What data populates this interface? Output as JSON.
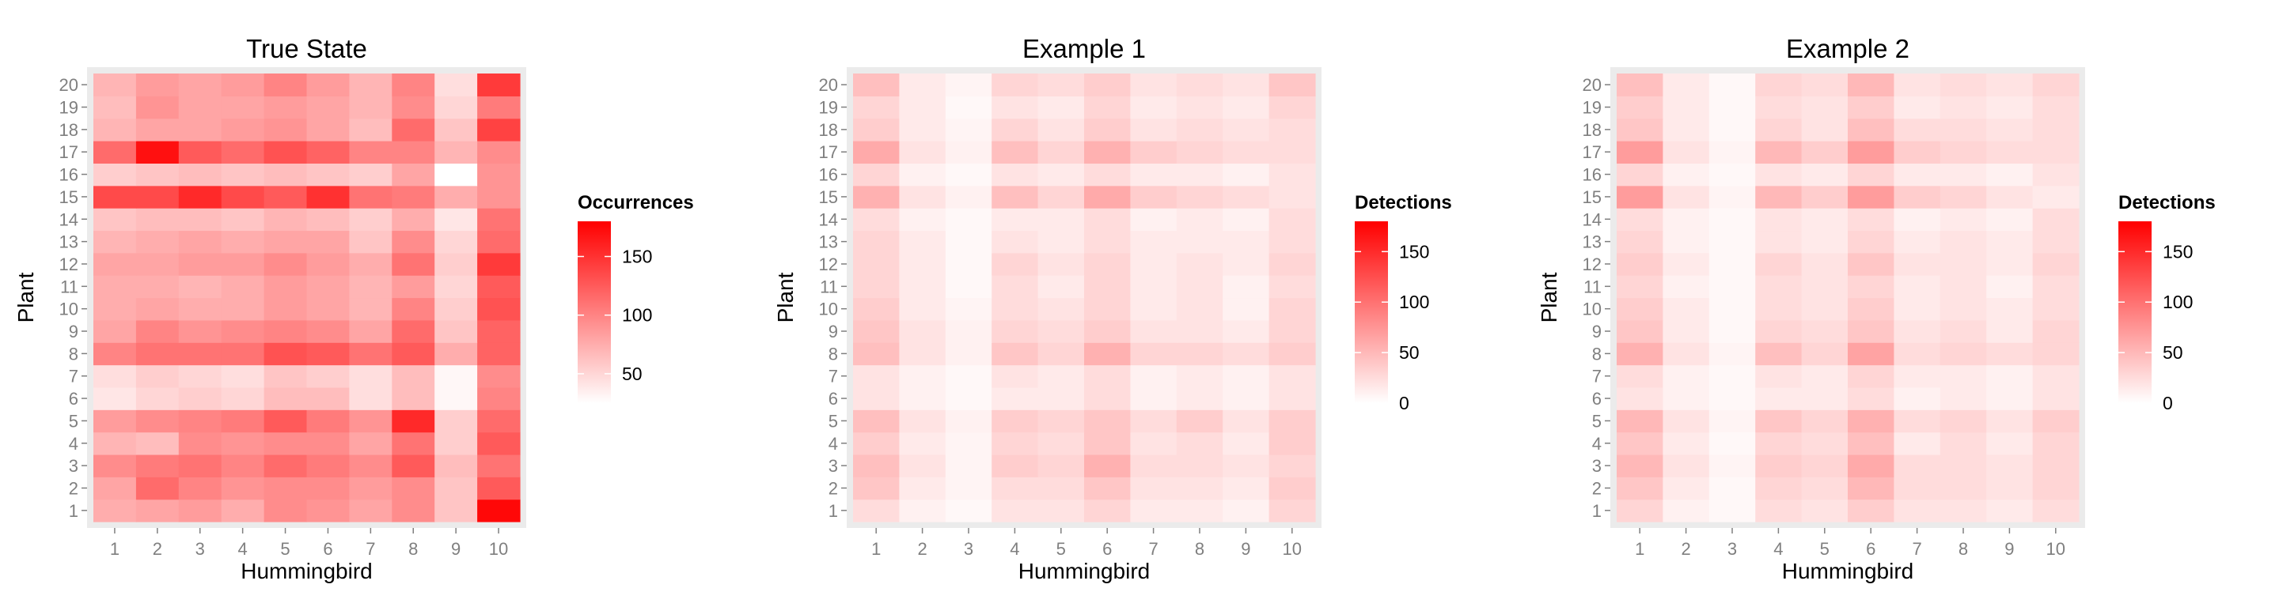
{
  "chart_data": [
    {
      "type": "heatmap",
      "title": "True State",
      "xlabel": "Hummingbird",
      "ylabel": "Plant",
      "x": [
        "1",
        "2",
        "3",
        "4",
        "5",
        "6",
        "7",
        "8",
        "9",
        "10"
      ],
      "y": [
        "1",
        "2",
        "3",
        "4",
        "5",
        "6",
        "7",
        "8",
        "9",
        "10",
        "11",
        "12",
        "13",
        "14",
        "15",
        "16",
        "17",
        "18",
        "19",
        "20"
      ],
      "legend": {
        "title": "Occurrences",
        "ticks": [
          50,
          100,
          150
        ],
        "min": 25,
        "max": 180
      },
      "values": [
        [
          75,
          80,
          85,
          75,
          95,
          90,
          80,
          95,
          60,
          175
        ],
        [
          80,
          115,
          100,
          90,
          95,
          95,
          85,
          95,
          60,
          125
        ],
        [
          95,
          105,
          110,
          100,
          115,
          105,
          95,
          125,
          65,
          110
        ],
        [
          70,
          65,
          95,
          90,
          95,
          95,
          80,
          110,
          55,
          125
        ],
        [
          85,
          95,
          100,
          105,
          125,
          105,
          90,
          155,
          55,
          115
        ],
        [
          40,
          50,
          55,
          50,
          65,
          65,
          45,
          65,
          30,
          100
        ],
        [
          45,
          55,
          50,
          45,
          60,
          55,
          45,
          65,
          30,
          95
        ],
        [
          100,
          110,
          110,
          110,
          130,
          125,
          110,
          125,
          75,
          120
        ],
        [
          80,
          100,
          90,
          95,
          100,
          95,
          80,
          115,
          60,
          120
        ],
        [
          75,
          80,
          75,
          75,
          85,
          80,
          70,
          100,
          55,
          130
        ],
        [
          75,
          75,
          70,
          75,
          85,
          80,
          70,
          85,
          50,
          125
        ],
        [
          80,
          80,
          85,
          85,
          95,
          85,
          75,
          110,
          55,
          145
        ],
        [
          70,
          75,
          80,
          75,
          80,
          80,
          60,
          95,
          50,
          115
        ],
        [
          60,
          65,
          65,
          60,
          70,
          65,
          55,
          75,
          40,
          110
        ],
        [
          135,
          135,
          155,
          135,
          125,
          150,
          110,
          105,
          75,
          90
        ],
        [
          55,
          60,
          65,
          60,
          65,
          60,
          55,
          80,
          25,
          90
        ],
        [
          115,
          170,
          125,
          115,
          130,
          120,
          100,
          100,
          70,
          95
        ],
        [
          70,
          80,
          80,
          85,
          90,
          80,
          65,
          115,
          60,
          140
        ],
        [
          65,
          90,
          80,
          80,
          85,
          80,
          70,
          95,
          50,
          105
        ],
        [
          70,
          85,
          80,
          85,
          100,
          85,
          70,
          100,
          45,
          145
        ]
      ]
    },
    {
      "type": "heatmap",
      "title": "Example 1",
      "xlabel": "Hummingbird",
      "ylabel": "Plant",
      "x": [
        "1",
        "2",
        "3",
        "4",
        "5",
        "6",
        "7",
        "8",
        "9",
        "10"
      ],
      "y": [
        "1",
        "2",
        "3",
        "4",
        "5",
        "6",
        "7",
        "8",
        "9",
        "10",
        "11",
        "12",
        "13",
        "14",
        "15",
        "16",
        "17",
        "18",
        "19",
        "20"
      ],
      "legend": {
        "title": "Detections",
        "ticks": [
          0,
          50,
          100,
          150
        ],
        "min": 0,
        "max": 180
      },
      "values": [
        [
          25,
          10,
          5,
          20,
          20,
          30,
          15,
          15,
          10,
          30
        ],
        [
          40,
          15,
          8,
          25,
          25,
          40,
          20,
          20,
          15,
          35
        ],
        [
          45,
          20,
          8,
          35,
          30,
          55,
          25,
          25,
          20,
          30
        ],
        [
          35,
          15,
          8,
          30,
          25,
          40,
          20,
          25,
          15,
          35
        ],
        [
          45,
          20,
          10,
          35,
          30,
          40,
          25,
          35,
          20,
          35
        ],
        [
          20,
          10,
          5,
          15,
          15,
          25,
          10,
          15,
          10,
          20
        ],
        [
          20,
          10,
          5,
          20,
          15,
          25,
          10,
          15,
          10,
          20
        ],
        [
          45,
          20,
          10,
          40,
          30,
          55,
          30,
          30,
          25,
          35
        ],
        [
          40,
          20,
          10,
          30,
          25,
          35,
          20,
          20,
          15,
          30
        ],
        [
          35,
          15,
          8,
          25,
          20,
          30,
          15,
          20,
          10,
          30
        ],
        [
          30,
          15,
          5,
          25,
          15,
          30,
          15,
          20,
          10,
          25
        ],
        [
          30,
          15,
          5,
          30,
          20,
          30,
          15,
          20,
          15,
          30
        ],
        [
          30,
          15,
          5,
          20,
          15,
          25,
          15,
          15,
          15,
          25
        ],
        [
          25,
          10,
          5,
          15,
          15,
          25,
          10,
          15,
          10,
          25
        ],
        [
          55,
          20,
          10,
          45,
          30,
          60,
          35,
          30,
          25,
          20
        ],
        [
          30,
          10,
          5,
          20,
          15,
          25,
          15,
          15,
          10,
          20
        ],
        [
          60,
          20,
          10,
          45,
          30,
          55,
          35,
          30,
          25,
          25
        ],
        [
          35,
          15,
          8,
          30,
          20,
          35,
          20,
          25,
          20,
          25
        ],
        [
          30,
          15,
          5,
          20,
          15,
          30,
          15,
          20,
          15,
          30
        ],
        [
          45,
          15,
          8,
          30,
          25,
          35,
          20,
          25,
          20,
          40
        ]
      ]
    },
    {
      "type": "heatmap",
      "title": "Example 2",
      "xlabel": "Hummingbird",
      "ylabel": "Plant",
      "x": [
        "1",
        "2",
        "3",
        "4",
        "5",
        "6",
        "7",
        "8",
        "9",
        "10"
      ],
      "y": [
        "1",
        "2",
        "3",
        "4",
        "5",
        "6",
        "7",
        "8",
        "9",
        "10",
        "11",
        "12",
        "13",
        "14",
        "15",
        "16",
        "17",
        "18",
        "19",
        "20"
      ],
      "legend": {
        "title": "Detections",
        "ticks": [
          0,
          50,
          100,
          150
        ],
        "min": 0,
        "max": 180
      },
      "values": [
        [
          30,
          10,
          5,
          25,
          20,
          35,
          20,
          20,
          15,
          25
        ],
        [
          40,
          15,
          5,
          30,
          25,
          50,
          25,
          25,
          20,
          30
        ],
        [
          50,
          20,
          8,
          35,
          30,
          60,
          25,
          25,
          20,
          30
        ],
        [
          40,
          15,
          5,
          30,
          25,
          45,
          15,
          25,
          15,
          30
        ],
        [
          50,
          20,
          8,
          40,
          30,
          55,
          25,
          30,
          20,
          35
        ],
        [
          20,
          10,
          5,
          15,
          15,
          25,
          10,
          15,
          10,
          20
        ],
        [
          25,
          10,
          5,
          20,
          15,
          30,
          15,
          15,
          10,
          20
        ],
        [
          55,
          20,
          8,
          45,
          30,
          65,
          25,
          30,
          25,
          30
        ],
        [
          40,
          15,
          5,
          30,
          25,
          40,
          20,
          25,
          15,
          30
        ],
        [
          35,
          15,
          5,
          25,
          20,
          35,
          15,
          20,
          15,
          25
        ],
        [
          30,
          10,
          5,
          25,
          20,
          30,
          15,
          20,
          10,
          25
        ],
        [
          35,
          15,
          5,
          30,
          20,
          40,
          20,
          20,
          15,
          30
        ],
        [
          30,
          10,
          5,
          20,
          15,
          30,
          15,
          20,
          15,
          25
        ],
        [
          25,
          10,
          5,
          20,
          15,
          25,
          10,
          15,
          10,
          25
        ],
        [
          70,
          20,
          8,
          50,
          35,
          70,
          35,
          30,
          20,
          15
        ],
        [
          30,
          10,
          5,
          20,
          15,
          30,
          15,
          15,
          10,
          20
        ],
        [
          70,
          20,
          8,
          50,
          35,
          70,
          35,
          30,
          25,
          25
        ],
        [
          40,
          15,
          5,
          30,
          20,
          45,
          25,
          25,
          20,
          25
        ],
        [
          35,
          15,
          5,
          25,
          20,
          35,
          15,
          20,
          15,
          25
        ],
        [
          45,
          15,
          5,
          30,
          25,
          50,
          20,
          25,
          20,
          30
        ]
      ]
    }
  ]
}
